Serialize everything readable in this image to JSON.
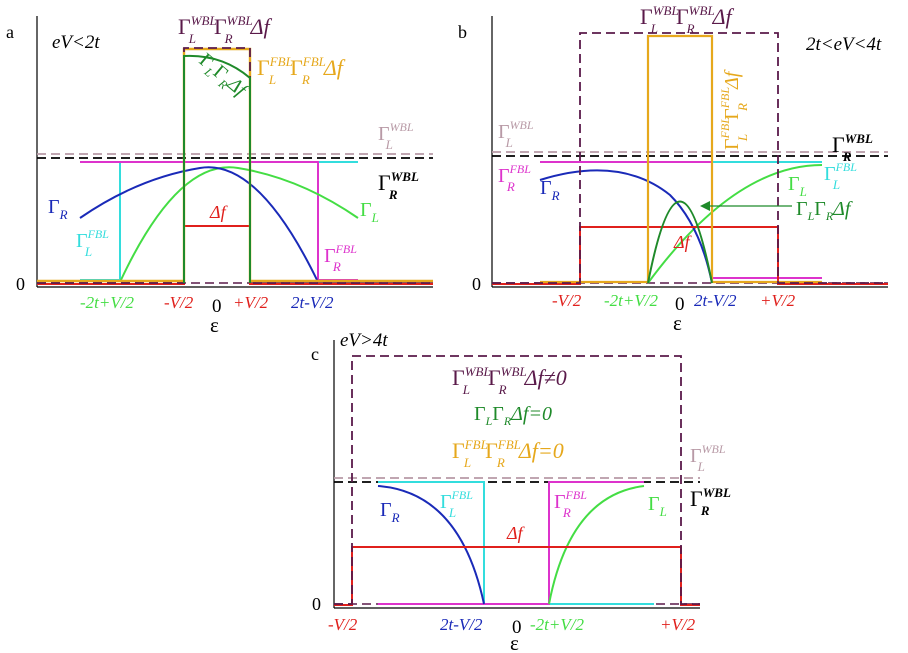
{
  "colors": {
    "wbl_product": "#5a1a4a",
    "fbl_product": "#e6a81c",
    "gamma_product": "#1f8a2a",
    "delta_f": "#e0201c",
    "gamma_r": "#1a2ab8",
    "gamma_l": "#44dd44",
    "gamma_l_fbl": "#33dddd",
    "gamma_r_fbl": "#dd33cc",
    "gamma_l_wbl": "#b89aa6",
    "gamma_r_wbl": "#000000"
  },
  "panels": [
    {
      "letter": "a",
      "regime": "eV<2t",
      "zero_label": "0",
      "epsilon_label": "ε",
      "epsilon_zero": "0",
      "ticks": [
        "-2t+V/2",
        "-V/2",
        "+V/2",
        "2t-V/2"
      ],
      "labels": {
        "wbl_product": "Γ_L^WBL Γ_R^WBL Δf",
        "fbl_product": "Γ_L^FBL Γ_R^FBL Δf",
        "gamma_product": "Γ_L Γ_R Δf",
        "delta_f": "Δf",
        "gamma_l": "Γ_L",
        "gamma_r": "Γ_R",
        "gamma_l_fbl": "Γ_L^FBL",
        "gamma_r_fbl": "Γ_R^FBL",
        "gamma_l_wbl": "Γ_L^WBL",
        "gamma_r_wbl": "Γ_R^WBL"
      }
    },
    {
      "letter": "b",
      "regime": "2t<eV<4t",
      "zero_label": "0",
      "epsilon_label": "ε",
      "epsilon_zero": "0",
      "ticks": [
        "-V/2",
        "-2t+V/2",
        "2t-V/2",
        "+V/2"
      ],
      "labels": {
        "wbl_product": "Γ_L^WBL Γ_R^WBL Δf",
        "fbl_product": "Γ_L^FBL Γ_R^FBL Δf",
        "gamma_product": "Γ_L Γ_R Δf",
        "delta_f": "Δf",
        "gamma_l": "Γ_L",
        "gamma_r": "Γ_R",
        "gamma_l_fbl": "Γ_L^FBL",
        "gamma_r_fbl": "Γ_R^FBL",
        "gamma_l_wbl": "Γ_L^WBL",
        "gamma_r_wbl": "Γ_R^WBL"
      }
    },
    {
      "letter": "c",
      "regime": "eV>4t",
      "zero_label": "0",
      "epsilon_label": "ε",
      "epsilon_zero": "0",
      "ticks": [
        "-V/2",
        "2t-V/2",
        "-2t+V/2",
        "+V/2"
      ],
      "labels": {
        "wbl_product": "Γ_L^WBL Γ_R^WBL Δf≠0",
        "fbl_product": "Γ_L^FBL Γ_R^FBL Δf=0",
        "gamma_product": "Γ_L Γ_R Δf=0",
        "delta_f": "Δf",
        "gamma_l": "Γ_L",
        "gamma_r": "Γ_R",
        "gamma_l_fbl": "Γ_L^FBL",
        "gamma_r_fbl": "Γ_R^FBL",
        "gamma_l_wbl": "Γ_L^WBL",
        "gamma_r_wbl": "Γ_R^WBL"
      }
    }
  ]
}
